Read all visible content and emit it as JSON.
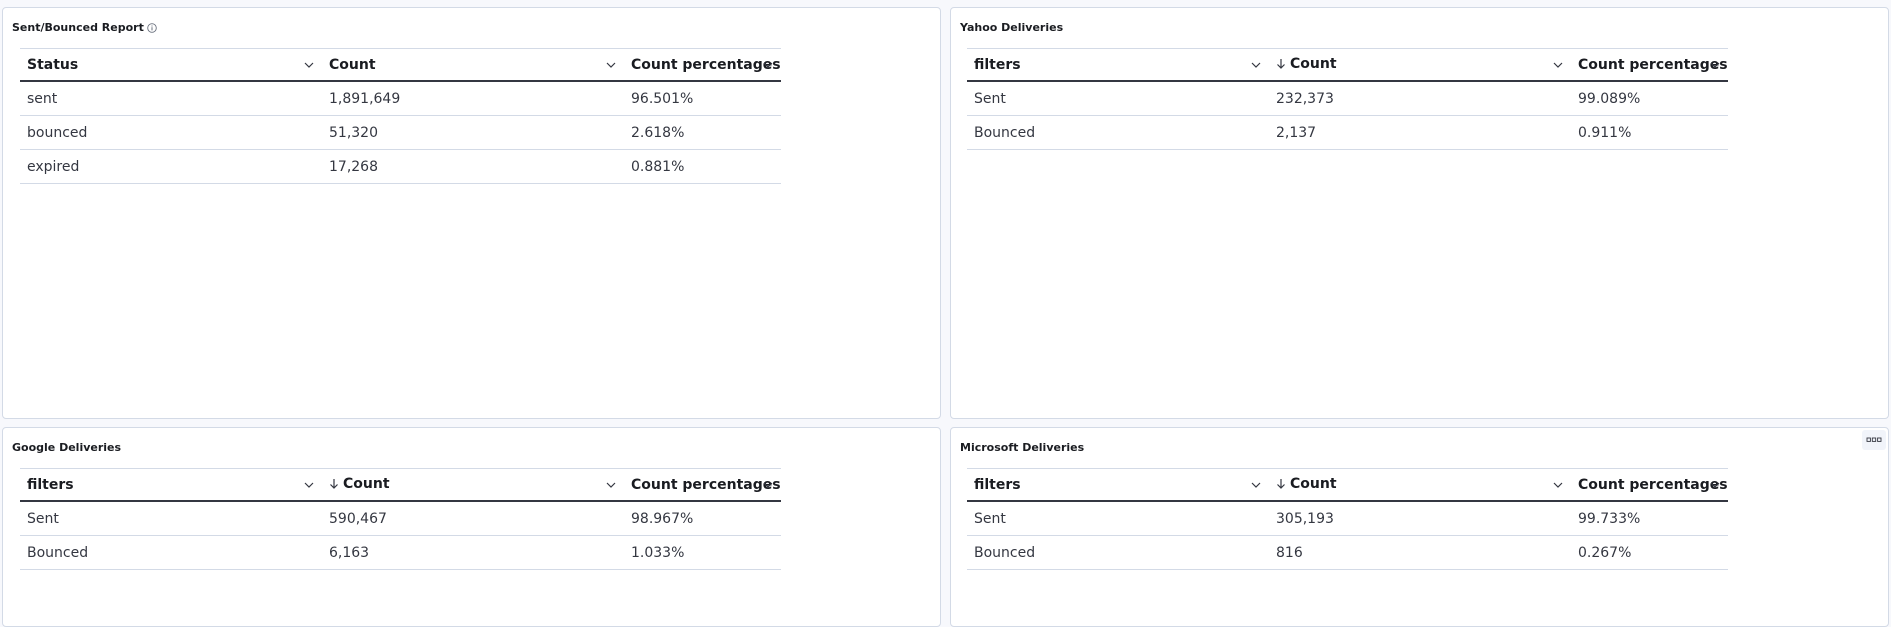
{
  "panels": {
    "sent_bounced": {
      "title": "Sent/Bounced Report",
      "columns": [
        "Status",
        "Count",
        "Count percentages"
      ],
      "rows": [
        [
          "sent",
          "1,891,649",
          "96.501%"
        ],
        [
          "bounced",
          "51,320",
          "2.618%"
        ],
        [
          "expired",
          "17,268",
          "0.881%"
        ]
      ]
    },
    "yahoo": {
      "title": "Yahoo Deliveries",
      "columns": [
        "filters",
        "Count",
        "Count percentages"
      ],
      "rows": [
        [
          "Sent",
          "232,373",
          "99.089%"
        ],
        [
          "Bounced",
          "2,137",
          "0.911%"
        ]
      ]
    },
    "google": {
      "title": "Google Deliveries",
      "columns": [
        "filters",
        "Count",
        "Count percentages"
      ],
      "rows": [
        [
          "Sent",
          "590,467",
          "98.967%"
        ],
        [
          "Bounced",
          "6,163",
          "1.033%"
        ]
      ]
    },
    "microsoft": {
      "title": "Microsoft Deliveries",
      "columns": [
        "filters",
        "Count",
        "Count percentages"
      ],
      "rows": [
        [
          "Sent",
          "305,193",
          "99.733%"
        ],
        [
          "Bounced",
          "816",
          "0.267%"
        ]
      ]
    }
  },
  "icons": {
    "info": "info-icon",
    "sort_desc": "arrow-down-icon",
    "column_menu": "chevron-down-icon",
    "panel_menu": "ellipsis-icon"
  }
}
